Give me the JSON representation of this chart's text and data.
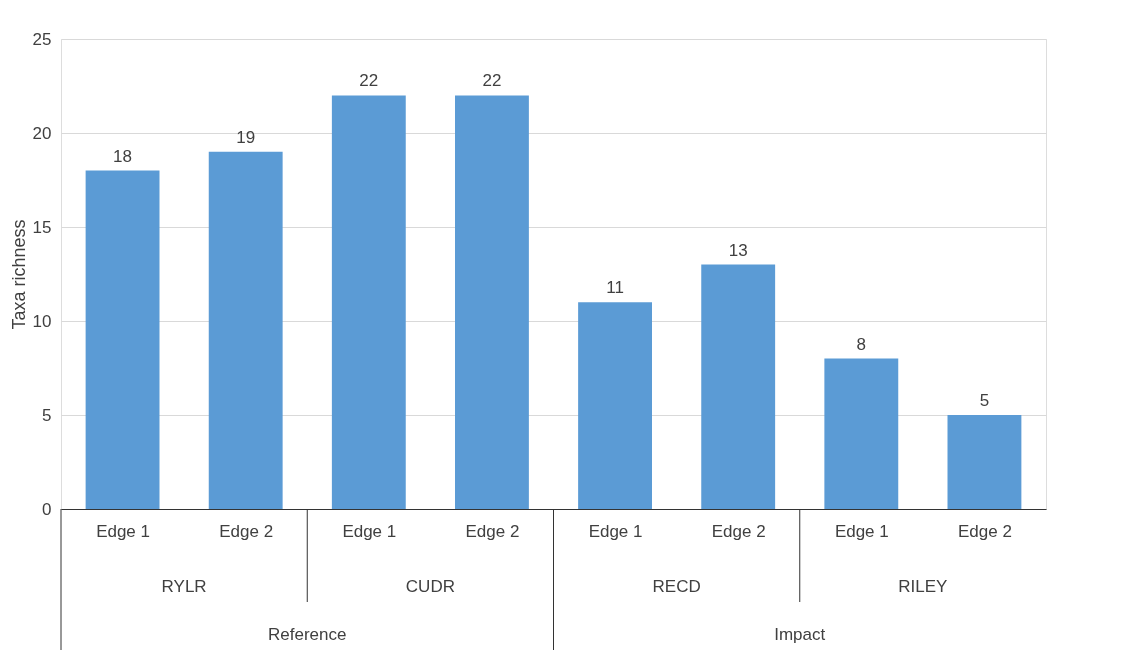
{
  "chart_data": {
    "type": "bar",
    "ylabel": "Taxa richness",
    "categories": [
      "Edge 1",
      "Edge 2",
      "Edge 1",
      "Edge 2",
      "Edge 1",
      "Edge 2",
      "Edge 1",
      "Edge 2"
    ],
    "values": [
      18,
      19,
      22,
      22,
      11,
      13,
      8,
      5
    ],
    "color": "#5b9bd5",
    "data_labels": true,
    "ylim": [
      0,
      25
    ],
    "yticks": [
      0,
      5,
      10,
      15,
      20,
      25
    ],
    "grid": "y",
    "annotations": [
      "RYLR",
      "CUDR",
      "RECD",
      "RILEY",
      "Reference",
      "Impact"
    ]
  }
}
